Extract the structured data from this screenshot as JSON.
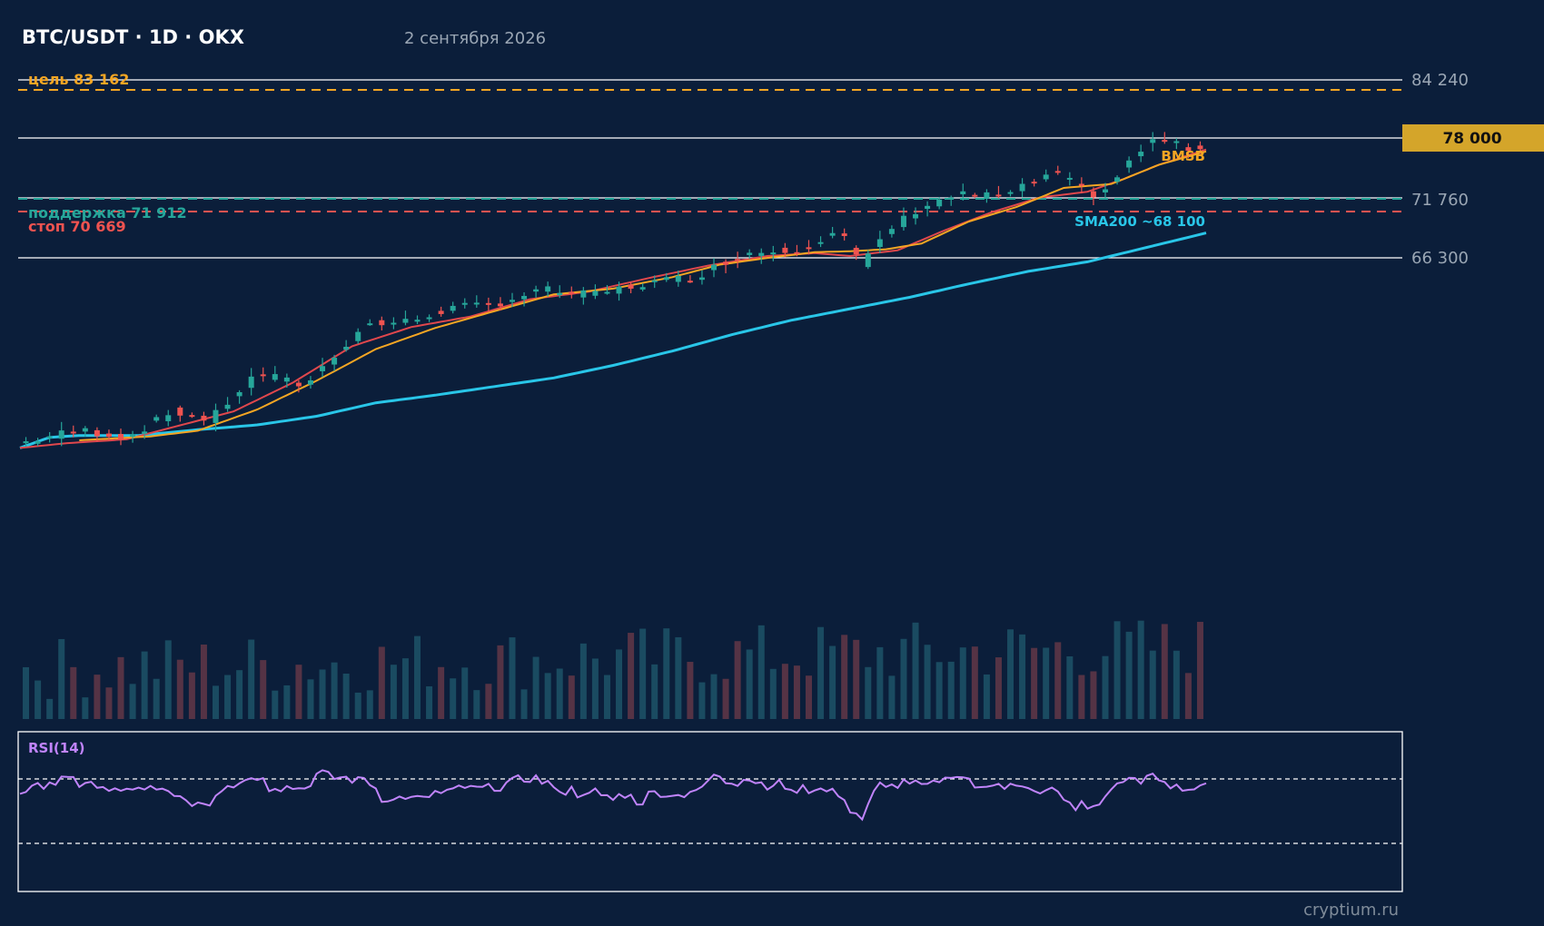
{
  "header": {
    "title": "BTC/USDT · 1D · OKX",
    "date": "2 сентября 2026"
  },
  "colors": {
    "background": "#0b1e3a",
    "up": "#26a69a",
    "down": "#ef5350",
    "ema_fast": "#f5a623",
    "ema_slow": "#e0474c",
    "sma200": "#29c6e8",
    "target": "#f5a623",
    "stop": "#ef5350",
    "support": "#26a69a",
    "price_badge": "#d4a52a",
    "rsi": "#c084fc",
    "text_muted": "#9aa6b4"
  },
  "levels": {
    "target": {
      "label": "цель 83 162",
      "value": 83162
    },
    "support": {
      "label": "поддержка 71 912",
      "value": 71912
    },
    "stop": {
      "label": "стоп 70 669",
      "value": 70669
    },
    "price_badge": "78 000",
    "price_level": 78000,
    "bmsb_label": "BMSB",
    "sma_label": "SMA200 ~68 100"
  },
  "rsi": {
    "label": "RSI(14)",
    "overbought": 70,
    "oversold": 30
  },
  "footer": {
    "source": "cryptium.ru"
  },
  "chart_data": {
    "type": "candlestick",
    "y_axis_ticks": [
      {
        "value": 84240,
        "label": "84 240"
      },
      {
        "value": 71760,
        "label": "71 760"
      },
      {
        "value": 66300,
        "label": "66 300"
      }
    ],
    "close_path": [
      [
        0,
        46200
      ],
      [
        10,
        47600
      ],
      [
        18,
        46800
      ],
      [
        26,
        49500
      ],
      [
        32,
        48600
      ],
      [
        40,
        53500
      ],
      [
        48,
        52200
      ],
      [
        58,
        58500
      ],
      [
        66,
        58900
      ],
      [
        72,
        60200
      ],
      [
        80,
        60700
      ],
      [
        88,
        62200
      ],
      [
        96,
        61600
      ],
      [
        106,
        62900
      ],
      [
        114,
        63600
      ],
      [
        122,
        66000
      ],
      [
        132,
        66500
      ],
      [
        138,
        68500
      ],
      [
        142,
        64700
      ],
      [
        146,
        68200
      ],
      [
        152,
        70900
      ],
      [
        158,
        72100
      ],
      [
        166,
        71900
      ],
      [
        174,
        74300
      ],
      [
        182,
        71900
      ],
      [
        188,
        76100
      ],
      [
        192,
        78200
      ],
      [
        196,
        76900
      ],
      [
        200,
        77200
      ]
    ],
    "ema_fast_path": [
      [
        10,
        46500
      ],
      [
        22,
        46900
      ],
      [
        30,
        47500
      ],
      [
        40,
        49700
      ],
      [
        50,
        52700
      ],
      [
        60,
        56000
      ],
      [
        70,
        58200
      ],
      [
        78,
        59600
      ],
      [
        90,
        61700
      ],
      [
        100,
        62300
      ],
      [
        110,
        63500
      ],
      [
        118,
        64800
      ],
      [
        126,
        65500
      ],
      [
        134,
        66100
      ],
      [
        140,
        66200
      ],
      [
        146,
        66400
      ],
      [
        152,
        67000
      ],
      [
        160,
        69300
      ],
      [
        168,
        70800
      ],
      [
        176,
        72800
      ],
      [
        184,
        73200
      ],
      [
        192,
        75200
      ],
      [
        200,
        76600
      ]
    ],
    "ema_slow_path": [
      [
        0,
        45700
      ],
      [
        8,
        46200
      ],
      [
        18,
        46600
      ],
      [
        26,
        47900
      ],
      [
        36,
        49500
      ],
      [
        46,
        52500
      ],
      [
        56,
        56300
      ],
      [
        66,
        58300
      ],
      [
        76,
        59400
      ],
      [
        86,
        61200
      ],
      [
        96,
        62000
      ],
      [
        106,
        63400
      ],
      [
        116,
        64700
      ],
      [
        126,
        65700
      ],
      [
        134,
        66000
      ],
      [
        140,
        65700
      ],
      [
        148,
        66300
      ],
      [
        156,
        68400
      ],
      [
        164,
        70300
      ],
      [
        172,
        71800
      ],
      [
        180,
        72400
      ],
      [
        186,
        73700
      ],
      [
        192,
        75200
      ],
      [
        200,
        76800
      ]
    ],
    "sma200_path": [
      [
        0,
        45700
      ],
      [
        5,
        46800
      ],
      [
        10,
        47000
      ],
      [
        20,
        47000
      ],
      [
        30,
        47600
      ],
      [
        40,
        48100
      ],
      [
        50,
        49000
      ],
      [
        60,
        50400
      ],
      [
        70,
        51200
      ],
      [
        80,
        52100
      ],
      [
        90,
        53000
      ],
      [
        100,
        54300
      ],
      [
        110,
        55800
      ],
      [
        120,
        57500
      ],
      [
        130,
        59000
      ],
      [
        140,
        60200
      ],
      [
        150,
        61400
      ],
      [
        160,
        62800
      ],
      [
        170,
        64100
      ],
      [
        180,
        65100
      ],
      [
        190,
        66600
      ],
      [
        200,
        68100
      ]
    ]
  }
}
